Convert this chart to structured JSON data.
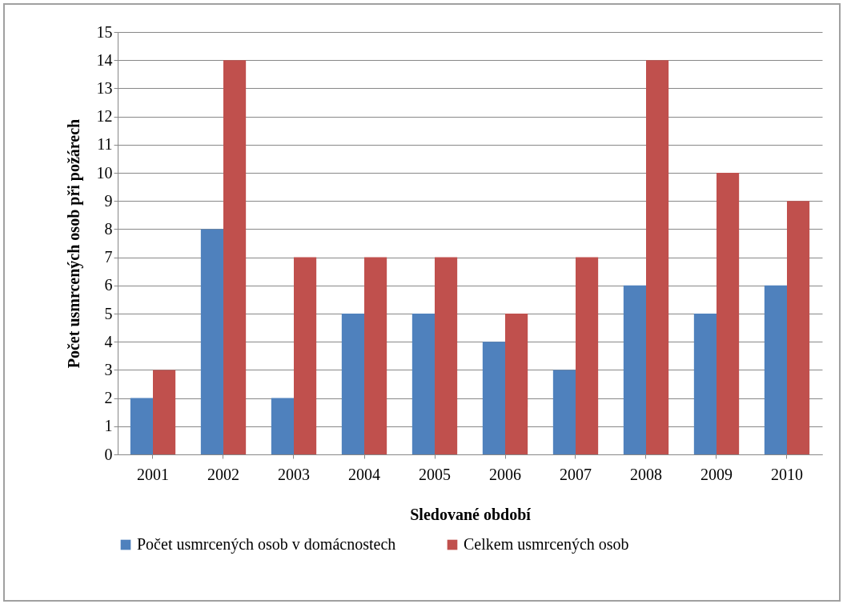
{
  "chart_data": {
    "type": "bar",
    "xlabel": "Sledované období",
    "ylabel": "Počet usmrcených osob při požárech",
    "categories": [
      "2001",
      "2002",
      "2003",
      "2004",
      "2005",
      "2006",
      "2007",
      "2008",
      "2009",
      "2010"
    ],
    "series": [
      {
        "name": "Počet usmrcených osob v domácnostech",
        "color": "#4f81bd",
        "values": [
          2,
          8,
          2,
          5,
          5,
          4,
          3,
          6,
          5,
          6
        ]
      },
      {
        "name": "Celkem usmrcených osob",
        "color": "#c0504d",
        "values": [
          3,
          14,
          7,
          7,
          7,
          5,
          7,
          14,
          10,
          9
        ]
      }
    ],
    "ylim": [
      0,
      15
    ],
    "yticks": [
      0,
      1,
      2,
      3,
      4,
      5,
      6,
      7,
      8,
      9,
      10,
      11,
      12,
      13,
      14,
      15
    ],
    "grid": "y",
    "legend": "bottom"
  }
}
